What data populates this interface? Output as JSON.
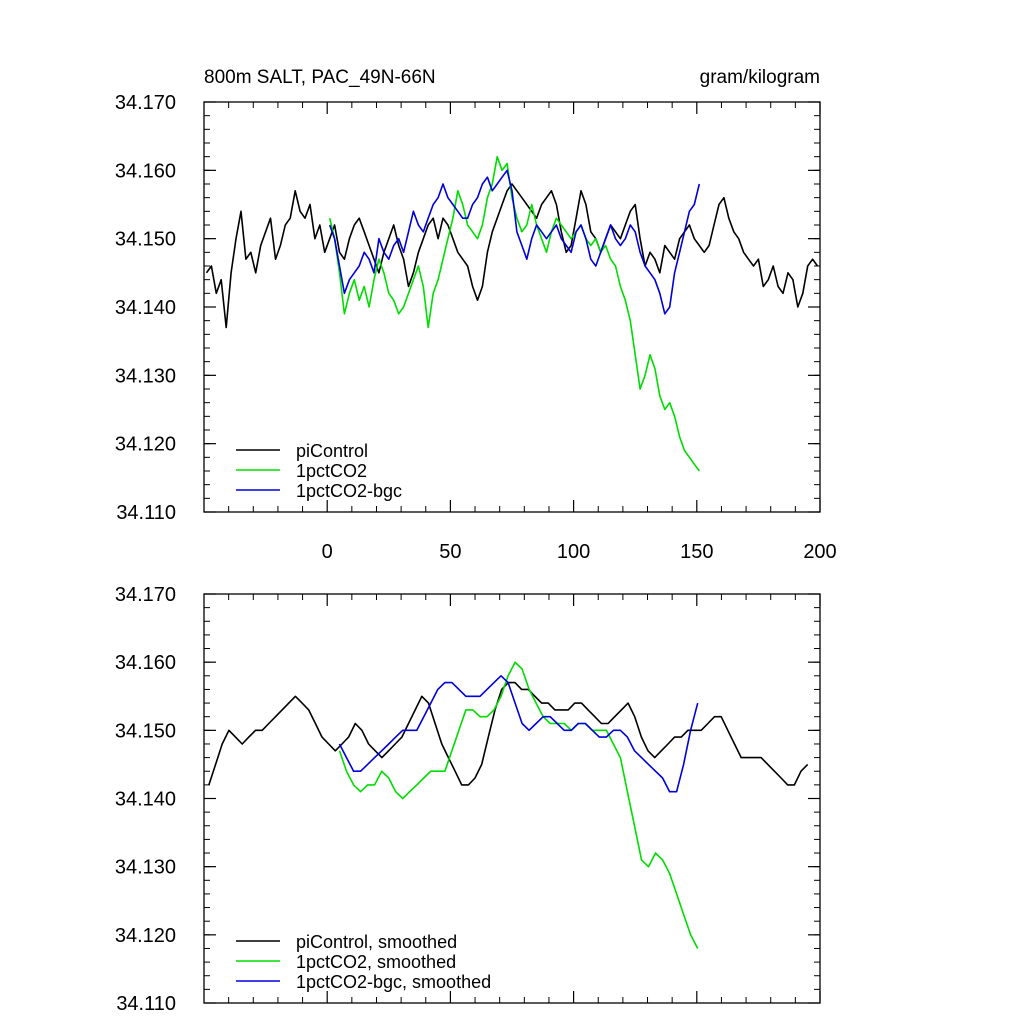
{
  "figure": {
    "title_left": "800m SALT, PAC_49N-66N",
    "title_right": "gram/kilogram"
  },
  "colors": {
    "piControl": "#000000",
    "1pctCO2": "#00dd00",
    "1pctCO2-bgc": "#0000dd"
  },
  "chart_data": [
    {
      "type": "line",
      "panel": "top",
      "title": "800m SALT, PAC_49N-66N",
      "units": "gram/kilogram",
      "xlim": [
        -50,
        200
      ],
      "ylim": [
        34.11,
        34.17
      ],
      "xticks": [
        0,
        50,
        100,
        150,
        200
      ],
      "xtick_labels": [
        "0",
        "50",
        "100",
        "150",
        "200"
      ],
      "yticks": [
        34.11,
        34.12,
        34.13,
        34.14,
        34.15,
        34.16,
        34.17
      ],
      "ytick_labels": [
        "34.110",
        "34.120",
        "34.130",
        "34.140",
        "34.150",
        "34.160",
        "34.170"
      ],
      "legend_position": "bottom-left",
      "series": [
        {
          "name": "piControl",
          "key": "piControl",
          "x": [
            -49,
            -47,
            -45,
            -43,
            -41,
            -39,
            -37,
            -35,
            -33,
            -31,
            -29,
            -27,
            -25,
            -23,
            -21,
            -19,
            -17,
            -15,
            -13,
            -11,
            -9,
            -7,
            -5,
            -3,
            -1,
            1,
            3,
            5,
            7,
            9,
            11,
            13,
            15,
            17,
            19,
            21,
            23,
            25,
            27,
            29,
            31,
            33,
            35,
            37,
            39,
            41,
            43,
            45,
            47,
            49,
            51,
            53,
            55,
            57,
            59,
            61,
            63,
            65,
            67,
            69,
            71,
            73,
            75,
            77,
            79,
            81,
            83,
            85,
            87,
            89,
            91,
            93,
            95,
            97,
            99,
            101,
            103,
            105,
            107,
            109,
            111,
            113,
            115,
            117,
            119,
            121,
            123,
            125,
            127,
            129,
            131,
            133,
            135,
            137,
            139,
            141,
            143,
            145,
            147,
            149,
            151,
            153,
            155,
            157,
            159,
            161,
            163,
            165,
            167,
            169,
            171,
            173,
            175,
            177,
            179,
            181,
            183,
            185,
            187,
            189,
            191,
            193,
            195,
            197,
            199
          ],
          "values": [
            34.145,
            34.146,
            34.142,
            34.144,
            34.137,
            34.145,
            34.15,
            34.154,
            34.147,
            34.148,
            34.145,
            34.149,
            34.151,
            34.153,
            34.147,
            34.149,
            34.152,
            34.153,
            34.157,
            34.154,
            34.153,
            34.155,
            34.15,
            34.152,
            34.148,
            34.15,
            34.152,
            34.148,
            34.147,
            34.15,
            34.152,
            34.153,
            34.151,
            34.149,
            34.147,
            34.145,
            34.148,
            34.15,
            34.152,
            34.149,
            34.147,
            34.143,
            34.145,
            34.148,
            34.15,
            34.152,
            34.153,
            34.15,
            34.153,
            34.152,
            34.15,
            34.148,
            34.147,
            34.146,
            34.143,
            34.141,
            34.143,
            34.148,
            34.151,
            34.153,
            34.155,
            34.157,
            34.158,
            34.157,
            34.156,
            34.155,
            34.154,
            34.153,
            34.155,
            34.156,
            34.157,
            34.155,
            34.151,
            34.148,
            34.149,
            34.153,
            34.157,
            34.155,
            34.151,
            34.15,
            34.148,
            34.15,
            34.152,
            34.151,
            34.15,
            34.152,
            34.154,
            34.155,
            34.15,
            34.146,
            34.148,
            34.147,
            34.145,
            34.149,
            34.148,
            34.147,
            34.15,
            34.151,
            34.152,
            34.15,
            34.149,
            34.148,
            34.149,
            34.152,
            34.155,
            34.156,
            34.153,
            34.151,
            34.15,
            34.148,
            34.147,
            34.146,
            34.147,
            34.143,
            34.144,
            34.146,
            34.143,
            34.142,
            34.145,
            34.144,
            34.14,
            34.142,
            34.146,
            34.147,
            34.146
          ],
          "smoothed": [
            34.142,
            34.145,
            34.148,
            34.15,
            34.149,
            34.148,
            34.149,
            34.15,
            34.15,
            34.151,
            34.152,
            34.153,
            34.154,
            34.155,
            34.154,
            34.153,
            34.151,
            34.149,
            34.148,
            34.147,
            34.148,
            34.149,
            34.151,
            34.15,
            34.148,
            34.147,
            34.146,
            34.147,
            34.148,
            34.149,
            34.151,
            34.153,
            34.155,
            34.154,
            34.151,
            34.148,
            34.146,
            34.144,
            34.142,
            34.142,
            34.143,
            34.145,
            34.149,
            34.153,
            34.156,
            34.157,
            34.157,
            34.156,
            34.156,
            34.155,
            34.154,
            34.154,
            34.153,
            34.153,
            34.153,
            34.154,
            34.154,
            34.153,
            34.152,
            34.151,
            34.151,
            34.152,
            34.153,
            34.154,
            34.152,
            34.149,
            34.147,
            34.146,
            34.147,
            34.148,
            34.149,
            34.149,
            34.15,
            34.15,
            34.15,
            34.151,
            34.152,
            34.152,
            34.15,
            34.148,
            34.146,
            34.146,
            34.146,
            34.146,
            34.145,
            34.144,
            34.143,
            34.142,
            34.142,
            34.144,
            34.145
          ]
        },
        {
          "name": "1pctCO2",
          "key": "1pctCO2",
          "x": [
            1,
            3,
            5,
            7,
            9,
            11,
            13,
            15,
            17,
            19,
            21,
            23,
            25,
            27,
            29,
            31,
            33,
            35,
            37,
            39,
            41,
            43,
            45,
            47,
            49,
            51,
            53,
            55,
            57,
            59,
            61,
            63,
            65,
            67,
            69,
            71,
            73,
            75,
            77,
            79,
            81,
            83,
            85,
            87,
            89,
            91,
            93,
            95,
            97,
            99,
            101,
            103,
            105,
            107,
            109,
            111,
            113,
            115,
            117,
            119,
            121,
            123,
            125,
            127,
            129,
            131,
            133,
            135,
            137,
            139,
            141,
            143,
            145,
            147,
            149,
            151
          ],
          "values": [
            34.153,
            34.15,
            34.145,
            34.139,
            34.142,
            34.144,
            34.141,
            34.143,
            34.14,
            34.144,
            34.147,
            34.145,
            34.142,
            34.141,
            34.139,
            34.14,
            34.142,
            34.144,
            34.146,
            34.143,
            34.137,
            34.142,
            34.144,
            34.147,
            34.15,
            34.153,
            34.157,
            34.155,
            34.152,
            34.151,
            34.15,
            34.152,
            34.156,
            34.158,
            34.162,
            34.16,
            34.161,
            34.156,
            34.153,
            34.151,
            34.152,
            34.155,
            34.152,
            34.15,
            34.148,
            34.151,
            34.153,
            34.152,
            34.151,
            34.15,
            34.151,
            34.152,
            34.15,
            34.149,
            34.15,
            34.148,
            34.149,
            34.147,
            34.146,
            34.143,
            34.141,
            34.138,
            34.133,
            34.128,
            34.13,
            34.133,
            34.131,
            34.127,
            34.125,
            34.126,
            34.124,
            34.121,
            34.119,
            34.118,
            34.117,
            34.116
          ],
          "smoothed": [
            34.147,
            34.144,
            34.142,
            34.141,
            34.142,
            34.142,
            34.144,
            34.143,
            34.141,
            34.14,
            34.141,
            34.142,
            34.143,
            34.144,
            34.144,
            34.144,
            34.147,
            34.15,
            34.153,
            34.153,
            34.152,
            34.152,
            34.153,
            34.155,
            34.158,
            34.16,
            34.159,
            34.156,
            34.154,
            34.152,
            34.151,
            34.151,
            34.151,
            34.15,
            34.151,
            34.151,
            34.15,
            34.15,
            34.15,
            34.148,
            34.146,
            34.141,
            34.136,
            34.131,
            34.13,
            34.132,
            34.131,
            34.129,
            34.126,
            34.123,
            34.12,
            34.118
          ]
        },
        {
          "name": "1pctCO2-bgc",
          "key": "1pctCO2-bgc",
          "x": [
            1,
            3,
            5,
            7,
            9,
            11,
            13,
            15,
            17,
            19,
            21,
            23,
            25,
            27,
            29,
            31,
            33,
            35,
            37,
            39,
            41,
            43,
            45,
            47,
            49,
            51,
            53,
            55,
            57,
            59,
            61,
            63,
            65,
            67,
            69,
            71,
            73,
            75,
            77,
            79,
            81,
            83,
            85,
            87,
            89,
            91,
            93,
            95,
            97,
            99,
            101,
            103,
            105,
            107,
            109,
            111,
            113,
            115,
            117,
            119,
            121,
            123,
            125,
            127,
            129,
            131,
            133,
            135,
            137,
            139,
            141,
            143,
            145,
            147,
            149,
            151
          ],
          "values": [
            34.152,
            34.15,
            34.146,
            34.142,
            34.144,
            34.145,
            34.146,
            34.148,
            34.147,
            34.145,
            34.15,
            34.148,
            34.147,
            34.149,
            34.15,
            34.148,
            34.151,
            34.154,
            34.152,
            34.151,
            34.153,
            34.155,
            34.156,
            34.158,
            34.156,
            34.155,
            34.154,
            34.153,
            34.153,
            34.155,
            34.156,
            34.158,
            34.159,
            34.157,
            34.158,
            34.159,
            34.16,
            34.157,
            34.151,
            34.149,
            34.147,
            34.15,
            34.152,
            34.151,
            34.15,
            34.151,
            34.152,
            34.15,
            34.149,
            34.148,
            34.151,
            34.152,
            34.15,
            34.147,
            34.146,
            34.148,
            34.15,
            34.152,
            34.15,
            34.149,
            34.15,
            34.152,
            34.151,
            34.148,
            34.146,
            34.145,
            34.144,
            34.142,
            34.139,
            34.14,
            34.145,
            34.148,
            34.151,
            34.154,
            34.155,
            34.158
          ],
          "smoothed": [
            34.148,
            34.146,
            34.144,
            34.144,
            34.145,
            34.146,
            34.147,
            34.148,
            34.149,
            34.15,
            34.15,
            34.15,
            34.152,
            34.154,
            34.156,
            34.157,
            34.157,
            34.156,
            34.155,
            34.155,
            34.155,
            34.156,
            34.157,
            34.158,
            34.157,
            34.154,
            34.151,
            34.15,
            34.151,
            34.152,
            34.152,
            34.151,
            34.15,
            34.15,
            34.151,
            34.151,
            34.15,
            34.149,
            34.149,
            34.15,
            34.15,
            34.149,
            34.147,
            34.146,
            34.145,
            34.144,
            34.143,
            34.141,
            34.141,
            34.145,
            34.15,
            34.154
          ]
        }
      ],
      "legend": [
        "piControl",
        "1pctCO2",
        "1pctCO2-bgc"
      ]
    },
    {
      "type": "line",
      "panel": "bottom",
      "xlim": [
        -50,
        200
      ],
      "ylim": [
        34.11,
        34.17
      ],
      "yticks": [
        34.11,
        34.12,
        34.13,
        34.14,
        34.15,
        34.16,
        34.17
      ],
      "ytick_labels": [
        "34.110",
        "34.120",
        "34.130",
        "34.140",
        "34.150",
        "34.160",
        "34.170"
      ],
      "legend_position": "bottom-left",
      "legend": [
        "piControl, smoothed",
        "1pctCO2, smoothed",
        "1pctCO2-bgc, smoothed"
      ],
      "smoothed_x_piControl_start": -48,
      "smoothed_x_piControl_step": 2.7,
      "smoothed_x_exp_start": 5,
      "smoothed_x_exp_step": 2.85
    }
  ]
}
